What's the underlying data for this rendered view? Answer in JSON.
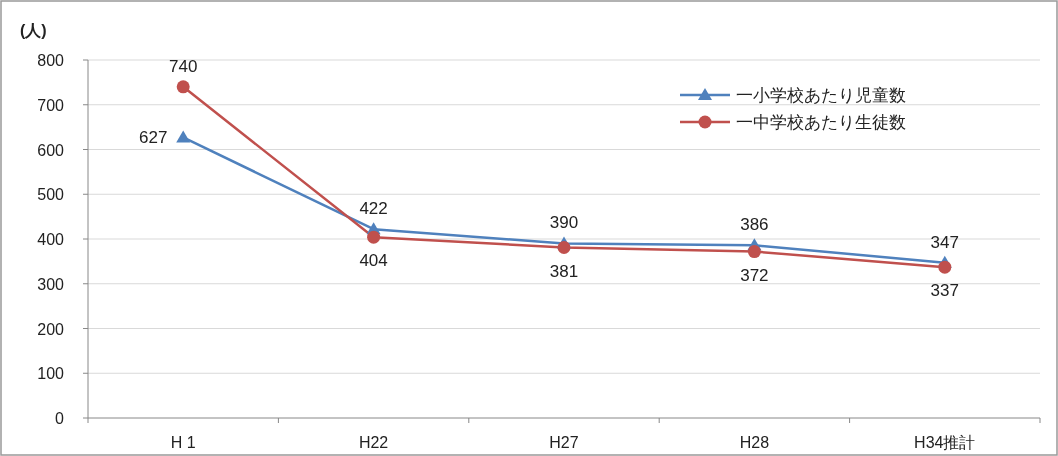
{
  "chart_data": {
    "type": "line",
    "ylabel": "(人)",
    "categories": [
      "H 1",
      "H22",
      "H27",
      "H28",
      "H34推計"
    ],
    "series": [
      {
        "name": "一小学校あたり児童数",
        "color": "#4f81bd",
        "marker": "triangle",
        "values": [
          627,
          422,
          390,
          386,
          347
        ]
      },
      {
        "name": "一中学校あたり生徒数",
        "color": "#c0504d",
        "marker": "circle",
        "values": [
          740,
          404,
          381,
          372,
          337
        ]
      }
    ],
    "ylim": [
      0,
      800
    ],
    "yticks": [
      0,
      100,
      200,
      300,
      400,
      500,
      600,
      700,
      800
    ],
    "grid": "y",
    "legend": "top right",
    "data_labels": true,
    "line_style": "solid"
  }
}
